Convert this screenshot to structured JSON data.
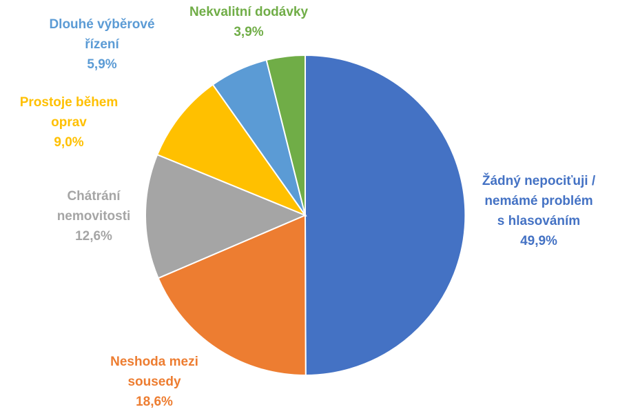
{
  "chart_data": {
    "type": "pie",
    "slices": [
      {
        "lines": [
          "Žádný nepociťuji /",
          "nemámé problém",
          "s hlasováním"
        ],
        "pct": "49,9%",
        "value": 49.9,
        "color": "#4472C4"
      },
      {
        "lines": [
          "Neshoda mezi",
          "sousedy"
        ],
        "pct": "18,6%",
        "value": 18.6,
        "color": "#ED7D31"
      },
      {
        "lines": [
          "Chátrání",
          "nemovitosti"
        ],
        "pct": "12,6%",
        "value": 12.6,
        "color": "#A5A5A5"
      },
      {
        "lines": [
          "Prostoje během",
          "oprav"
        ],
        "pct": "9,0%",
        "value": 9.0,
        "color": "#FFC000"
      },
      {
        "lines": [
          "Dlouhé výběrové",
          "řízení"
        ],
        "pct": "5,9%",
        "value": 5.9,
        "color": "#5B9BD5"
      },
      {
        "lines": [
          "Nekvalitní dodávky"
        ],
        "pct": "3,9%",
        "value": 3.9,
        "color": "#70AD47"
      }
    ],
    "start": "12 o'clock",
    "direction": "clockwise",
    "legend": "none",
    "data_labels": "outside, category name and percentage"
  }
}
